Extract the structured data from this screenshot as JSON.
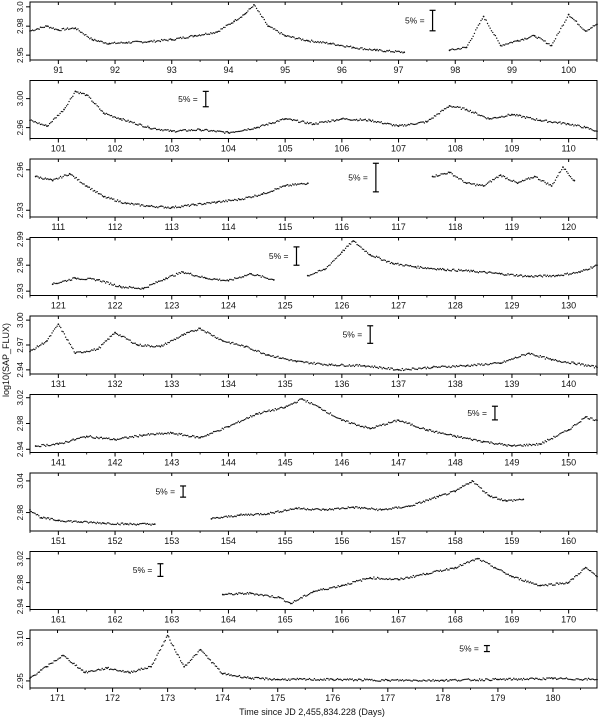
{
  "chart_data": {
    "type": "scatter",
    "xlabel": "Time since JD 2,455,834.228 (Days)",
    "ylabel": "log10(SAP_FLUX)",
    "scale_bar_label": "5% =",
    "scale_bar_pct": 5,
    "panels": [
      {
        "xlim": [
          90.5,
          100.5
        ],
        "xticks": [
          "91",
          "92",
          "93",
          "94",
          "95",
          "96",
          "97",
          "98",
          "99",
          "100"
        ],
        "ylim": [
          2.945,
          3.005
        ],
        "yticks": [
          "2.95",
          "2.98",
          "3.0"
        ],
        "scale_bar_x": 97.6,
        "series": [
          {
            "x": [
              90.5,
              90.8,
              91.0,
              91.3,
              91.6,
              91.9,
              92.2,
              92.6,
              93.0,
              93.4,
              93.8,
              94.1,
              94.3,
              94.45,
              94.7,
              95.0,
              95.4,
              95.8,
              96.2,
              96.6,
              97.1
            ],
            "y": [
              2.975,
              2.98,
              2.976,
              2.978,
              2.966,
              2.962,
              2.963,
              2.964,
              2.966,
              2.97,
              2.974,
              2.985,
              2.993,
              3.002,
              2.98,
              2.97,
              2.965,
              2.962,
              2.958,
              2.955,
              2.953
            ]
          },
          {
            "x": [
              97.9,
              98.2,
              98.5,
              98.8,
              99.1,
              99.4,
              99.7,
              100.0,
              100.3,
              100.5
            ],
            "y": [
              2.955,
              2.958,
              2.99,
              2.96,
              2.965,
              2.97,
              2.96,
              2.992,
              2.975,
              2.982
            ]
          }
        ]
      },
      {
        "xlim": [
          100.5,
          110.5
        ],
        "xticks": [
          "101",
          "102",
          "103",
          "104",
          "105",
          "106",
          "107",
          "108",
          "109",
          "110"
        ],
        "ylim": [
          2.945,
          3.025
        ],
        "yticks": [
          "2.96",
          "3.00"
        ],
        "scale_bar_x": 103.6,
        "series": [
          {
            "x": [
              100.5,
              100.8,
              101.1,
              101.3,
              101.5,
              101.8,
              102.1,
              102.6,
              103.0,
              103.5,
              104.0,
              104.5,
              105.0,
              105.5,
              106.0,
              106.5,
              107.0,
              107.5,
              107.9,
              108.2,
              108.6,
              109.0,
              109.5,
              110.0,
              110.3,
              110.5
            ],
            "y": [
              2.97,
              2.962,
              2.985,
              3.01,
              3.005,
              2.98,
              2.972,
              2.96,
              2.955,
              2.957,
              2.953,
              2.96,
              2.972,
              2.965,
              2.972,
              2.97,
              2.962,
              2.968,
              2.99,
              2.985,
              2.972,
              2.978,
              2.97,
              2.965,
              2.96,
              2.955
            ]
          }
        ]
      },
      {
        "xlim": [
          110.5,
          120.5
        ],
        "xticks": [
          "111",
          "112",
          "113",
          "114",
          "115",
          "116",
          "117",
          "118",
          "119",
          "120"
        ],
        "ylim": [
          2.925,
          2.968
        ],
        "yticks": [
          "2.93",
          "2.96"
        ],
        "scale_bar_x": 116.6,
        "series": [
          {
            "x": [
              110.6,
              110.9,
              111.2,
              111.5,
              111.8,
              112.2,
              112.6,
              113.0,
              113.4,
              113.8,
              114.2,
              114.6,
              115.0,
              115.4
            ],
            "y": [
              2.955,
              2.952,
              2.957,
              2.948,
              2.94,
              2.935,
              2.933,
              2.932,
              2.934,
              2.936,
              2.938,
              2.942,
              2.948,
              2.95
            ]
          },
          {
            "x": [
              117.6,
              117.9,
              118.2,
              118.5,
              118.8,
              119.1,
              119.4,
              119.7,
              119.9,
              120.1
            ],
            "y": [
              2.955,
              2.958,
              2.95,
              2.948,
              2.956,
              2.95,
              2.955,
              2.948,
              2.962,
              2.952
            ]
          }
        ]
      },
      {
        "xlim": [
          120.5,
          130.5
        ],
        "xticks": [
          "121",
          "122",
          "123",
          "124",
          "125",
          "126",
          "127",
          "128",
          "129",
          "130"
        ],
        "ylim": [
          2.925,
          2.992
        ],
        "yticks": [
          "2.93",
          "2.96",
          "2.99"
        ],
        "scale_bar_x": 125.2,
        "series": [
          {
            "x": [
              120.9,
              121.3,
              121.7,
              122.1,
              122.5,
              122.9,
              123.2,
              123.6,
              124.0,
              124.4,
              124.8
            ],
            "y": [
              2.938,
              2.945,
              2.943,
              2.935,
              2.933,
              2.945,
              2.952,
              2.945,
              2.942,
              2.95,
              2.943
            ]
          },
          {
            "x": [
              125.4,
              125.7,
              126.0,
              126.2,
              126.5,
              126.9,
              127.3,
              127.8,
              128.3,
              128.8,
              129.3,
              129.8,
              130.2,
              130.5
            ],
            "y": [
              2.948,
              2.955,
              2.975,
              2.988,
              2.972,
              2.962,
              2.958,
              2.955,
              2.953,
              2.95,
              2.947,
              2.948,
              2.952,
              2.96
            ]
          }
        ]
      },
      {
        "xlim": [
          130.5,
          140.5
        ],
        "xticks": [
          "131",
          "132",
          "133",
          "134",
          "135",
          "136",
          "137",
          "138",
          "139",
          "140"
        ],
        "ylim": [
          2.935,
          3.005
        ],
        "yticks": [
          "2.94",
          "2.97",
          "3.00"
        ],
        "scale_bar_x": 136.5,
        "series": [
          {
            "x": [
              130.5,
              130.8,
              131.0,
              131.3,
              131.7,
              132.0,
              132.4,
              132.8,
              133.2,
              133.5,
              133.9,
              134.3,
              134.7,
              135.2,
              135.8,
              136.4,
              137.0,
              137.6,
              138.2,
              138.8,
              139.3,
              139.7,
              140.1,
              140.5
            ],
            "y": [
              2.962,
              2.975,
              2.995,
              2.96,
              2.965,
              2.985,
              2.97,
              2.968,
              2.982,
              2.99,
              2.975,
              2.968,
              2.958,
              2.95,
              2.946,
              2.945,
              2.94,
              2.943,
              2.945,
              2.948,
              2.96,
              2.952,
              2.948,
              2.943
            ]
          }
        ]
      },
      {
        "xlim": [
          140.5,
          150.5
        ],
        "xticks": [
          "141",
          "142",
          "143",
          "144",
          "145",
          "146",
          "147",
          "148",
          "149",
          "150"
        ],
        "ylim": [
          2.935,
          3.025
        ],
        "yticks": [
          "2.94",
          "2.98",
          "3.02"
        ],
        "scale_bar_x": 148.7,
        "series": [
          {
            "x": [
              140.6,
              141.0,
              141.5,
              142.0,
              142.5,
              143.0,
              143.5,
              144.0,
              144.5,
              145.0,
              145.3,
              145.6,
              146.0,
              146.5,
              147.0,
              147.5,
              148.0,
              148.5,
              149.0,
              149.5,
              150.0,
              150.3,
              150.5
            ],
            "y": [
              2.945,
              2.948,
              2.96,
              2.955,
              2.962,
              2.965,
              2.958,
              2.975,
              2.995,
              3.005,
              3.018,
              3.005,
              2.985,
              2.972,
              2.985,
              2.97,
              2.96,
              2.952,
              2.945,
              2.948,
              2.97,
              2.99,
              2.985
            ]
          }
        ]
      },
      {
        "xlim": [
          150.5,
          160.5
        ],
        "xticks": [
          "151",
          "152",
          "153",
          "154",
          "155",
          "156",
          "157",
          "158",
          "159",
          "160"
        ],
        "ylim": [
          2.945,
          3.055
        ],
        "yticks": [
          "2.98",
          "3.04"
        ],
        "scale_bar_x": 153.2,
        "series": [
          {
            "x": [
              150.5,
              150.7,
              151.0,
              151.4,
              151.8,
              152.2,
              152.7
            ],
            "y": [
              2.985,
              2.97,
              2.965,
              2.962,
              2.96,
              2.958,
              2.958
            ]
          },
          {
            "x": [
              153.7,
              154.2,
              154.7,
              155.2,
              155.7,
              156.2,
              156.7,
              157.2,
              157.7,
              158.0,
              158.3,
              158.6,
              158.9,
              159.2
            ],
            "y": [
              2.968,
              2.975,
              2.978,
              2.988,
              2.985,
              2.99,
              2.985,
              2.992,
              3.01,
              3.02,
              3.04,
              3.012,
              3.002,
              3.005
            ]
          }
        ]
      },
      {
        "xlim": [
          160.5,
          170.5
        ],
        "xticks": [
          "161",
          "162",
          "163",
          "164",
          "165",
          "166",
          "167",
          "168",
          "169",
          "170"
        ],
        "ylim": [
          2.935,
          3.032
        ],
        "yticks": [
          "2.94",
          "2.98",
          "3.02"
        ],
        "scale_bar_x": 162.8,
        "series": [
          {
            "x": [
              163.9,
              164.4,
              164.9,
              165.1,
              165.5,
              166.0,
              166.5,
              167.0,
              167.5,
              168.0,
              168.4,
              168.7,
              169.0,
              169.5,
              170.0,
              170.3,
              170.5
            ],
            "y": [
              2.96,
              2.962,
              2.955,
              2.945,
              2.965,
              2.975,
              2.988,
              2.985,
              2.995,
              3.005,
              3.02,
              3.005,
              2.99,
              2.975,
              2.98,
              3.005,
              2.99
            ]
          }
        ]
      },
      {
        "xlim": [
          170.5,
          180.8
        ],
        "xticks": [
          "171",
          "172",
          "173",
          "174",
          "175",
          "176",
          "177",
          "178",
          "179",
          "180"
        ],
        "ylim": [
          2.925,
          3.13
        ],
        "yticks": [
          "2.95",
          "3.10"
        ],
        "scale_bar_x": 178.8,
        "series": [
          {
            "x": [
              170.5,
              170.8,
              171.1,
              171.5,
              171.9,
              172.3,
              172.7,
              173.0,
              173.3,
              173.6,
              174.0,
              174.5,
              175.0,
              176.0,
              177.0,
              178.0,
              179.0,
              180.0,
              180.8
            ],
            "y": [
              2.96,
              3.0,
              3.04,
              2.98,
              2.995,
              2.98,
              3.0,
              3.11,
              3.0,
              3.06,
              2.975,
              2.96,
              2.955,
              2.955,
              2.952,
              2.952,
              2.955,
              2.958,
              2.955
            ]
          }
        ]
      }
    ]
  }
}
